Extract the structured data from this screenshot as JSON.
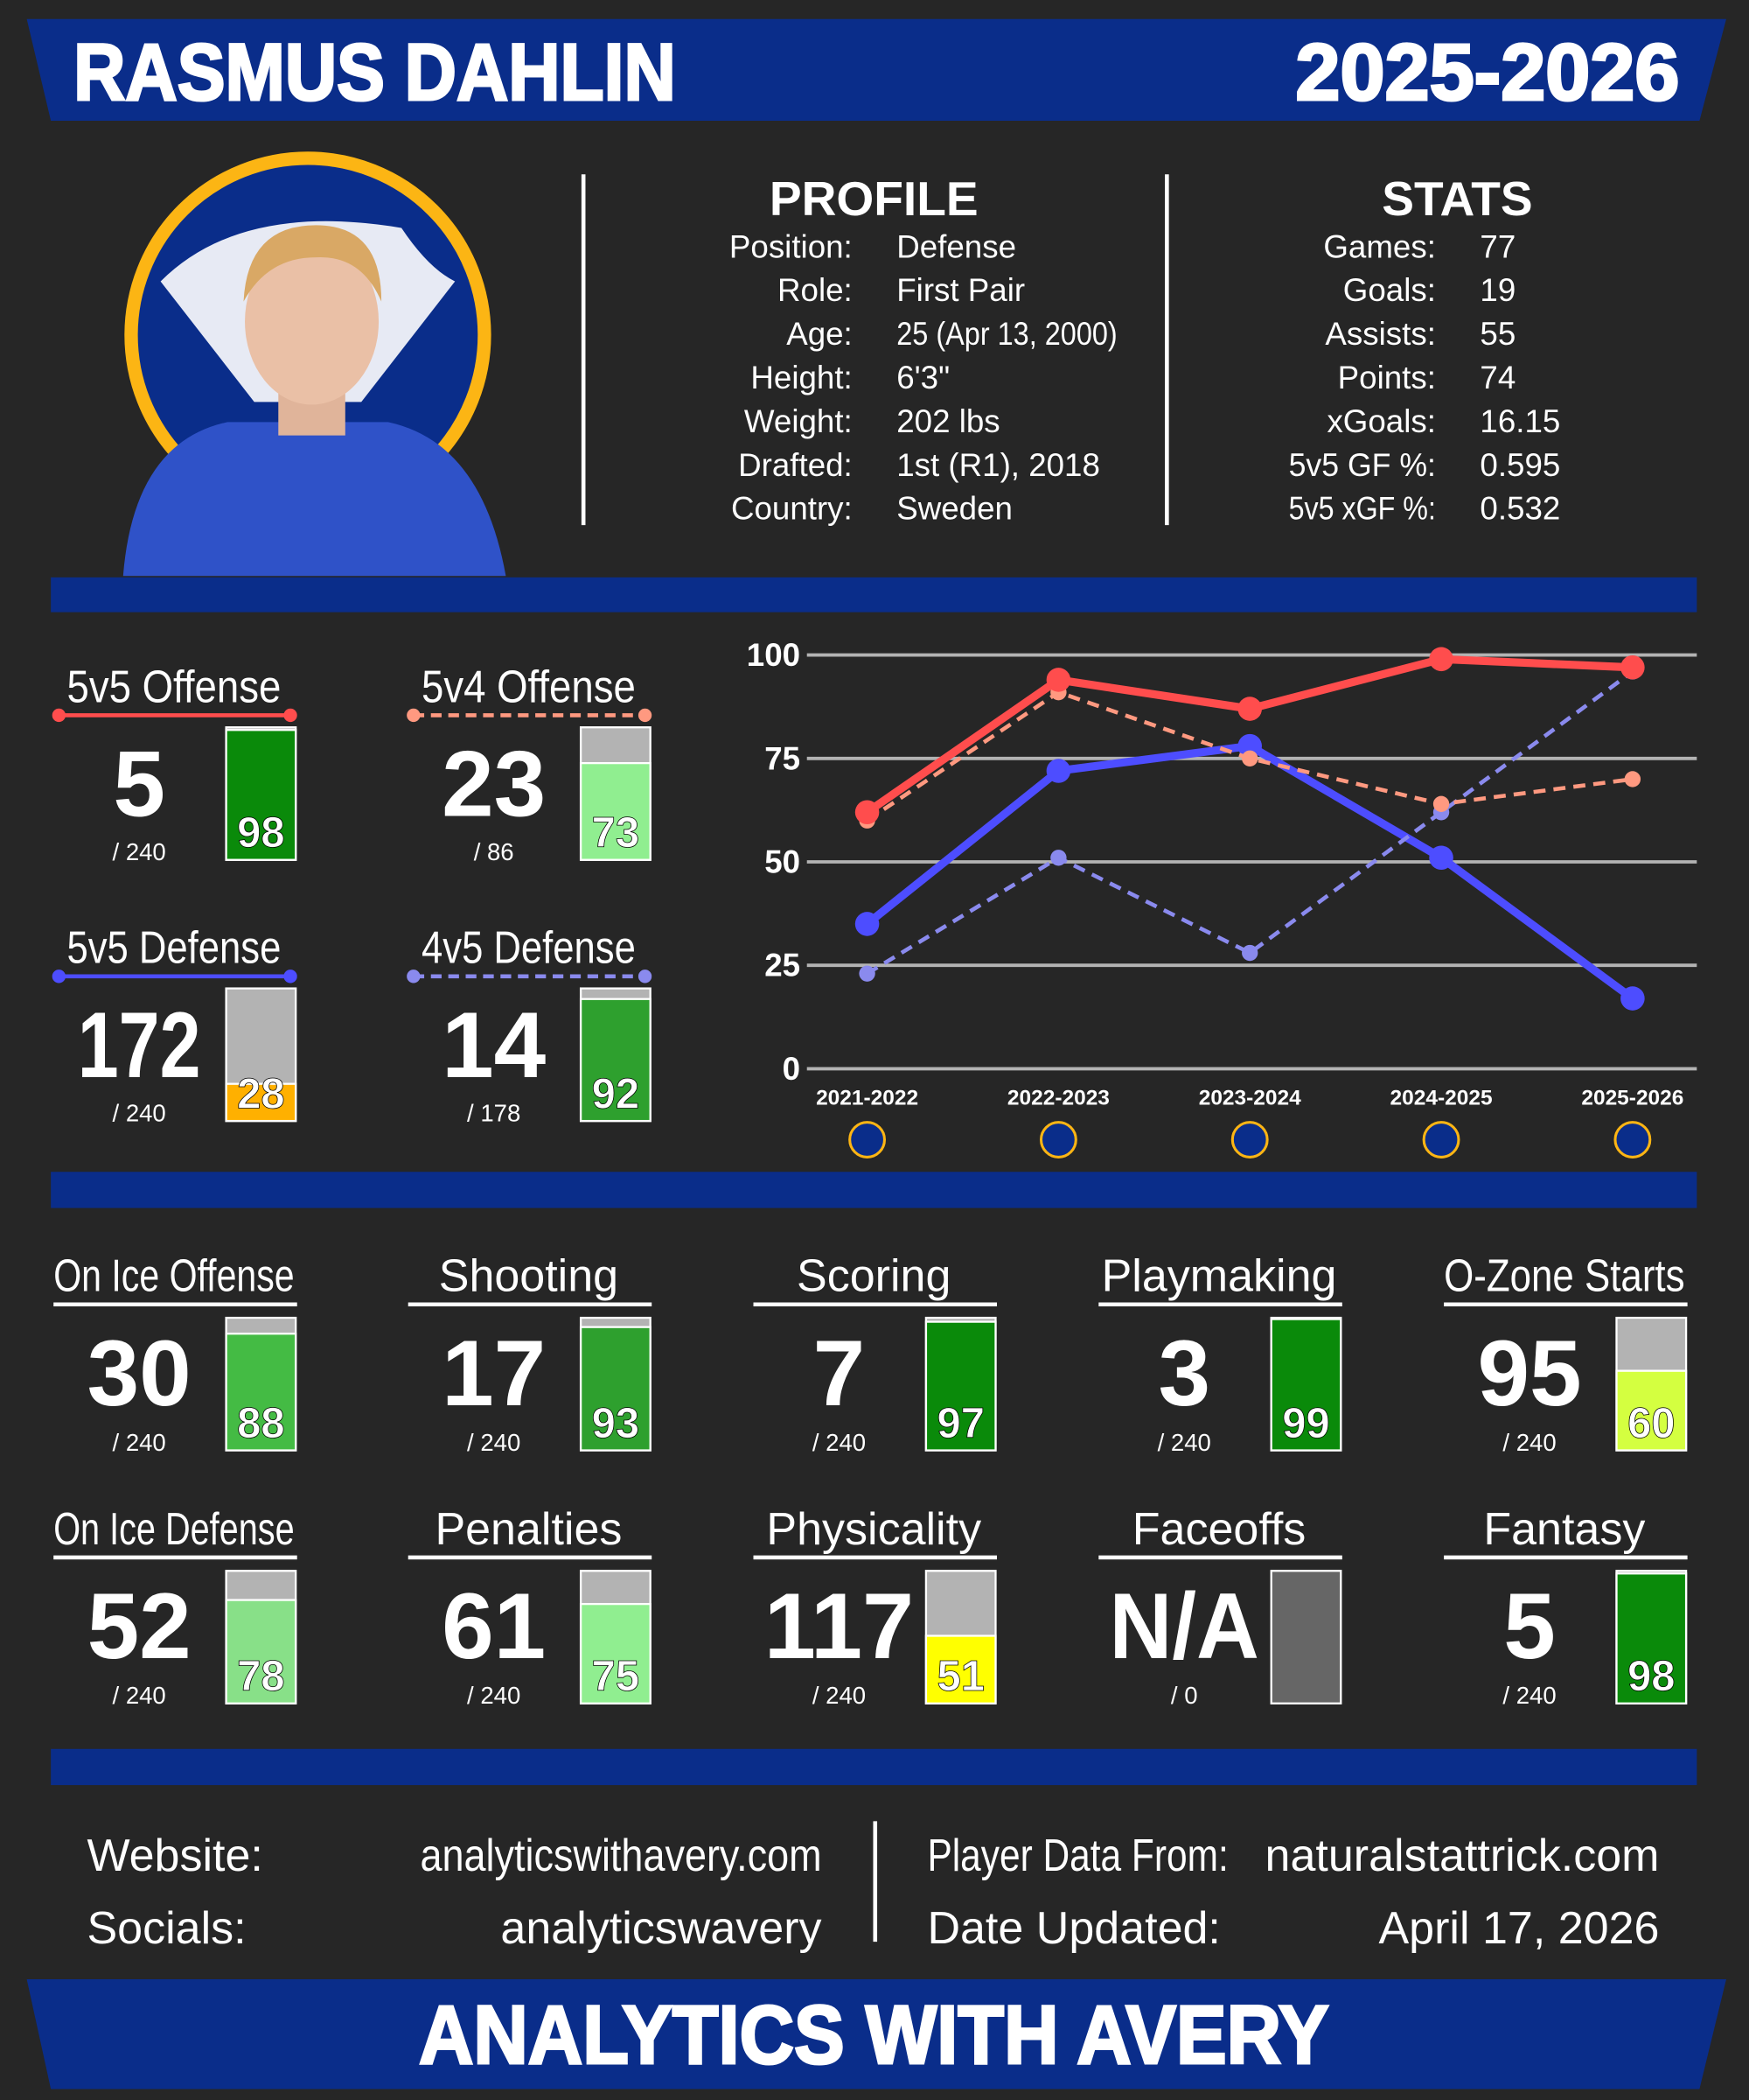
{
  "header": {
    "name": "RASMUS DAHLIN",
    "season": "2025-2026"
  },
  "profile": {
    "title": "PROFILE",
    "rows": [
      {
        "label": "Position:",
        "value": "Defense"
      },
      {
        "label": "Role:",
        "value": "First Pair"
      },
      {
        "label": "Age:",
        "value": "25 (Apr 13, 2000)"
      },
      {
        "label": "Height:",
        "value": "6'3\""
      },
      {
        "label": "Weight:",
        "value": "202 lbs"
      },
      {
        "label": "Drafted:",
        "value": "1st (R1), 2018"
      },
      {
        "label": "Country:",
        "value": "Sweden"
      }
    ]
  },
  "stats": {
    "title": "STATS",
    "rows": [
      {
        "label": "Games:",
        "value": 77
      },
      {
        "label": "Goals:",
        "value": 19
      },
      {
        "label": "Assists:",
        "value": 55
      },
      {
        "label": "Points:",
        "value": 74
      },
      {
        "label": "xGoals:",
        "value": 16.15
      },
      {
        "label": "5v5 GF %:",
        "value": 0.595
      },
      {
        "label": "5v5 xGF %:",
        "value": 0.532
      }
    ]
  },
  "chart_data": {
    "type": "line",
    "categories": [
      "2021-2022",
      "2022-2023",
      "2023-2024",
      "2024-2025",
      "2025-2026"
    ],
    "ylim": [
      0,
      100
    ],
    "yticks": [
      0,
      25,
      50,
      75,
      100
    ],
    "grid": true,
    "series": [
      {
        "name": "5v5 Offense",
        "color": "#ff4d4d",
        "dashed": false,
        "values": [
          62,
          94,
          87,
          99,
          97
        ],
        "rank": 5,
        "total": "/ 240",
        "percentile": 98,
        "bar_color": "#0a8a0a"
      },
      {
        "name": "5v4 Offense",
        "color": "#ff9980",
        "dashed": true,
        "values": [
          60,
          91,
          75,
          64,
          70
        ],
        "rank": 23,
        "total": "/ 86",
        "percentile": 73,
        "bar_color": "#90ee90"
      },
      {
        "name": "5v5 Defense",
        "color": "#4d4dff",
        "dashed": false,
        "values": [
          35,
          72,
          78,
          51,
          17
        ],
        "rank": 172,
        "total": "/ 240",
        "percentile": 28,
        "bar_color": "#ffb000"
      },
      {
        "name": "4v5 Defense",
        "color": "#8a8aee",
        "dashed": true,
        "values": [
          23,
          51,
          28,
          62,
          96
        ],
        "rank": 14,
        "total": "/ 178",
        "percentile": 92,
        "bar_color": "#2ea02e"
      }
    ]
  },
  "categories": [
    {
      "title": "On Ice Offense",
      "rank": 30,
      "total": "/ 240",
      "percentile": 88,
      "color": "#44bb44"
    },
    {
      "title": "Shooting",
      "rank": 17,
      "total": "/ 240",
      "percentile": 93,
      "color": "#2ea02e"
    },
    {
      "title": "Scoring",
      "rank": 7,
      "total": "/ 240",
      "percentile": 97,
      "color": "#0a8a0a"
    },
    {
      "title": "Playmaking",
      "rank": 3,
      "total": "/ 240",
      "percentile": 99,
      "color": "#0a8a0a"
    },
    {
      "title": "O-Zone Starts",
      "rank": 95,
      "total": "/ 240",
      "percentile": 60,
      "color": "#d4ff40"
    },
    {
      "title": "On Ice Defense",
      "rank": 52,
      "total": "/ 240",
      "percentile": 78,
      "color": "#88e088"
    },
    {
      "title": "Penalties",
      "rank": 61,
      "total": "/ 240",
      "percentile": 75,
      "color": "#90ee90"
    },
    {
      "title": "Physicality",
      "rank": 117,
      "total": "/ 240",
      "percentile": 51,
      "color": "#ffff00"
    },
    {
      "title": "Faceoffs",
      "rank": "N/A",
      "total": "/ 0",
      "percentile": null,
      "color": "#666666"
    },
    {
      "title": "Fantasy",
      "rank": 5,
      "total": "/ 240",
      "percentile": 98,
      "color": "#0a8a0a"
    }
  ],
  "footer": {
    "rows": [
      {
        "label": "Website:",
        "value": "analyticswithavery.com"
      },
      {
        "label": "Socials:",
        "value": "analyticswavery"
      },
      {
        "label": "Player Data From:",
        "value": "naturalstattrick.com"
      },
      {
        "label": "Date Updated:",
        "value": "April 17, 2026"
      }
    ]
  },
  "banner": "ANALYTICS WITH AVERY"
}
